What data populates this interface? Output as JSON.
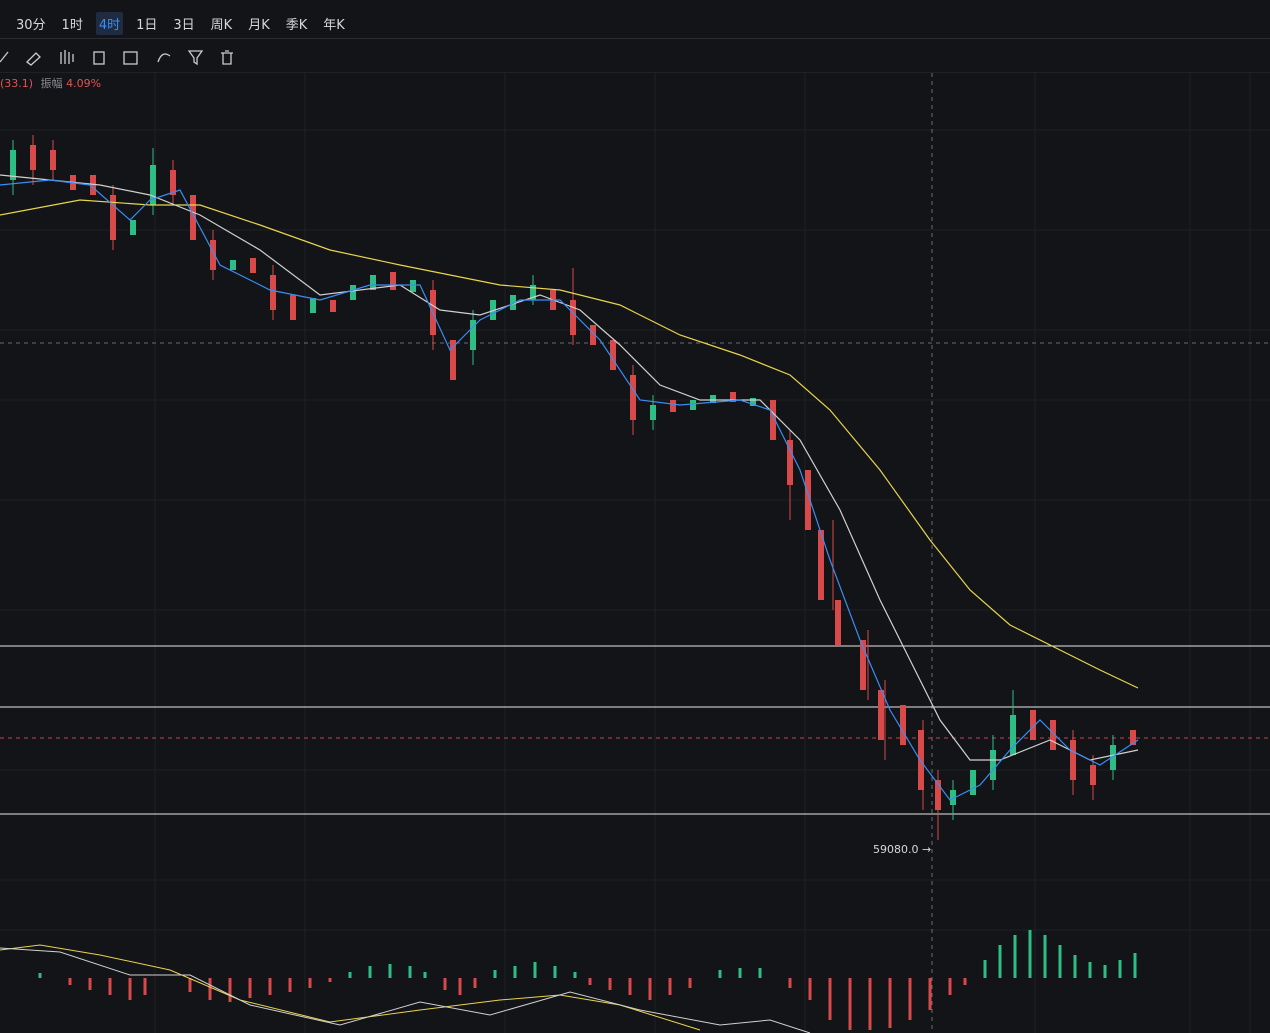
{
  "toolbar": {
    "intervals": [
      "30分",
      "1时",
      "4时",
      "1日",
      "3日",
      "周K",
      "月K",
      "季K",
      "年K"
    ]
  },
  "info": {
    "value": "(33.1)",
    "amplitude_label": "振幅",
    "amplitude": "4.09%"
  },
  "chart": {
    "low_label": "59080.0 →"
  }
}
